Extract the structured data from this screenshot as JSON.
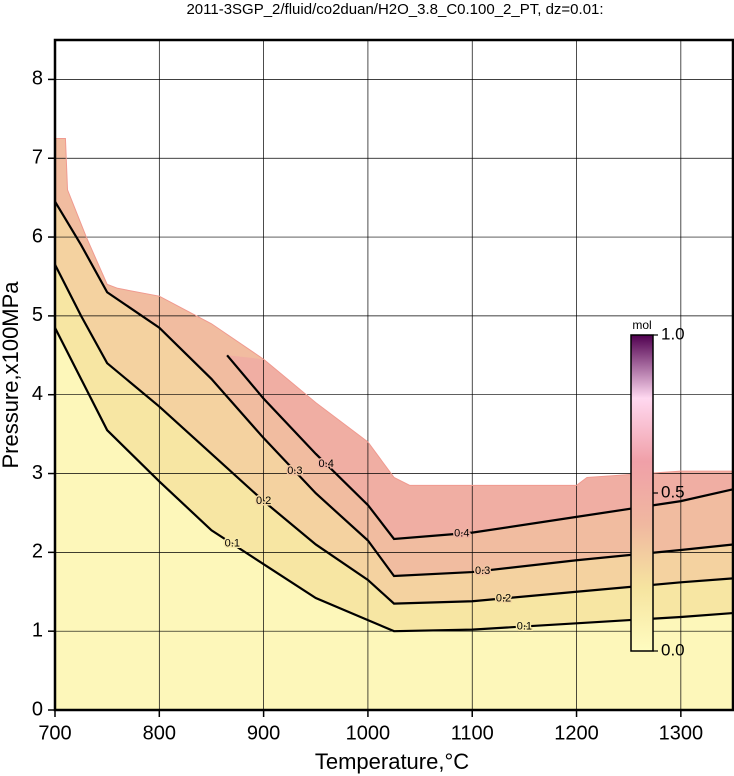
{
  "chart_data": {
    "type": "contour",
    "title": "2011-3SGP_2/fluid/co2duan/H2O_3.8_C0.100_2_PT, dz=0.01:",
    "x_label": "Temperature,°C",
    "y_label": "Pressure,x100MPa",
    "xlim": [
      700,
      1350
    ],
    "ylim": [
      0,
      8.5
    ],
    "xticks": [
      700,
      800,
      900,
      1000,
      1100,
      1200,
      1300
    ],
    "yticks": [
      0,
      1,
      2,
      3,
      4,
      5,
      6,
      7,
      8
    ],
    "grid": true,
    "boundary": {
      "x": [
        700,
        710,
        712,
        730,
        750,
        760,
        800,
        850,
        900,
        950,
        1000,
        1025,
        1040,
        1100,
        1200,
        1210,
        1300,
        1350
      ],
      "y": [
        7.25,
        7.25,
        6.6,
        6.0,
        5.4,
        5.35,
        5.25,
        4.9,
        4.45,
        3.9,
        3.4,
        2.95,
        2.85,
        2.85,
        2.85,
        2.95,
        3.03,
        3.03
      ]
    },
    "contours": [
      {
        "level": 0.1,
        "x": [
          700,
          725,
          750,
          800,
          850,
          900,
          950,
          1000,
          1025,
          1100,
          1200,
          1300,
          1350
        ],
        "y": [
          4.85,
          4.2,
          3.55,
          2.9,
          2.28,
          1.85,
          1.42,
          1.14,
          1.0,
          1.02,
          1.1,
          1.18,
          1.23
        ]
      },
      {
        "level": 0.2,
        "x": [
          700,
          725,
          750,
          800,
          850,
          900,
          950,
          1000,
          1025,
          1100,
          1200,
          1300,
          1350
        ],
        "y": [
          5.65,
          5.0,
          4.4,
          3.85,
          3.25,
          2.65,
          2.1,
          1.65,
          1.35,
          1.38,
          1.5,
          1.62,
          1.67
        ]
      },
      {
        "level": 0.3,
        "x": [
          700,
          725,
          750,
          800,
          850,
          900,
          950,
          1000,
          1025,
          1100,
          1200,
          1300,
          1350
        ],
        "y": [
          6.45,
          5.9,
          5.3,
          4.85,
          4.2,
          3.45,
          2.75,
          2.15,
          1.7,
          1.75,
          1.9,
          2.03,
          2.1
        ]
      },
      {
        "level": 0.4,
        "x": [
          865,
          900,
          950,
          1000,
          1025,
          1100,
          1200,
          1300,
          1350
        ],
        "y": [
          4.5,
          3.95,
          3.25,
          2.6,
          2.17,
          2.25,
          2.45,
          2.65,
          2.8
        ]
      }
    ],
    "colorbar": {
      "label": "mol",
      "colors": [
        "#fffcc0",
        "#f6e4a0",
        "#f0b8a0",
        "#f0a0a8",
        "#ffd8f0",
        "#500050"
      ],
      "ticks": [
        {
          "value": 0,
          "label": "0.0"
        },
        {
          "value": 0.5,
          "label": "0.5"
        },
        {
          "value": 1,
          "label": "1.0"
        }
      ]
    }
  }
}
